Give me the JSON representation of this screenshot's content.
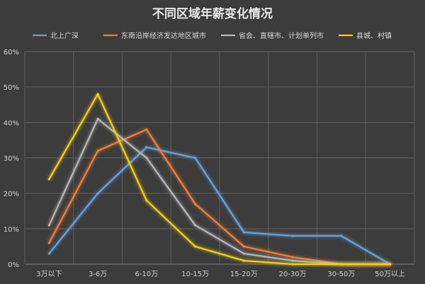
{
  "chart_data": {
    "type": "line",
    "title": "不同区域年薪变化情况",
    "categories": [
      "3万以下",
      "3-6万",
      "6-10万",
      "10-15万",
      "15-20万",
      "20-30万",
      "30-50万",
      "50万以上"
    ],
    "y_ticks": [
      "0%",
      "10%",
      "20%",
      "30%",
      "40%",
      "50%",
      "60%"
    ],
    "ylim": [
      0,
      60
    ],
    "grid": true,
    "legend_position": "top",
    "series": [
      {
        "name": "北上广深",
        "color": "#6a9fd8",
        "values": [
          3,
          20,
          33,
          30,
          9,
          8,
          8,
          0
        ]
      },
      {
        "name": "东南沿岸经济发达地区城市",
        "color": "#ef7f3a",
        "values": [
          6,
          32,
          38,
          17,
          5,
          2,
          0,
          0
        ]
      },
      {
        "name": "省会、直辖市、计划单列市",
        "color": "#b6b6b6",
        "values": [
          11,
          41,
          30,
          11,
          3,
          1,
          0,
          0
        ]
      },
      {
        "name": "县城、村镇",
        "color": "#f2cf16",
        "values": [
          24,
          48,
          18,
          5,
          1,
          0,
          0,
          0
        ]
      }
    ]
  }
}
